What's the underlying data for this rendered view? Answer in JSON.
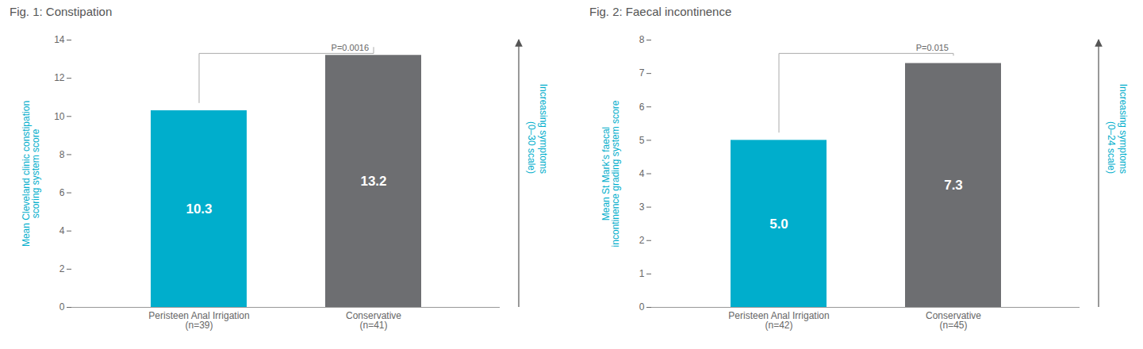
{
  "chart_data": [
    {
      "type": "bar",
      "title": "Fig. 1: Constipation",
      "categories": [
        "Peristeen Anal Irrigation\n(n=39)",
        "Conservative\n(n=41)"
      ],
      "values": [
        10.3,
        13.2
      ],
      "colors": [
        "#00AECC",
        "#6D6E71"
      ],
      "data_labels": true,
      "ylabel": "Mean Cleveland clinic constipation\nscoring system score",
      "ylim": [
        0,
        14
      ],
      "yticks": [
        0,
        2,
        4,
        6,
        8,
        10,
        12,
        14
      ],
      "grid": false,
      "annotations": [
        "P=0.0016",
        "Increasing symptoms\n(0–30 scale)"
      ]
    },
    {
      "type": "bar",
      "title": "Fig. 2: Faecal incontinence",
      "categories": [
        "Peristeen Anal Irrigation\n(n=42)",
        "Conservative\n(n=45)"
      ],
      "values": [
        5.0,
        7.3
      ],
      "value_labels": [
        "5.0",
        "7.3"
      ],
      "colors": [
        "#00AECC",
        "#6D6E71"
      ],
      "data_labels": true,
      "ylabel": "Mean St Mark’s faecal\nincontinence grading system score",
      "ylim": [
        0,
        8
      ],
      "yticks": [
        0,
        1,
        2,
        3,
        4,
        5,
        6,
        7,
        8
      ],
      "grid": false,
      "annotations": [
        "P=0.015",
        "Increasing symptoms\n(0–24 scale)"
      ]
    }
  ]
}
